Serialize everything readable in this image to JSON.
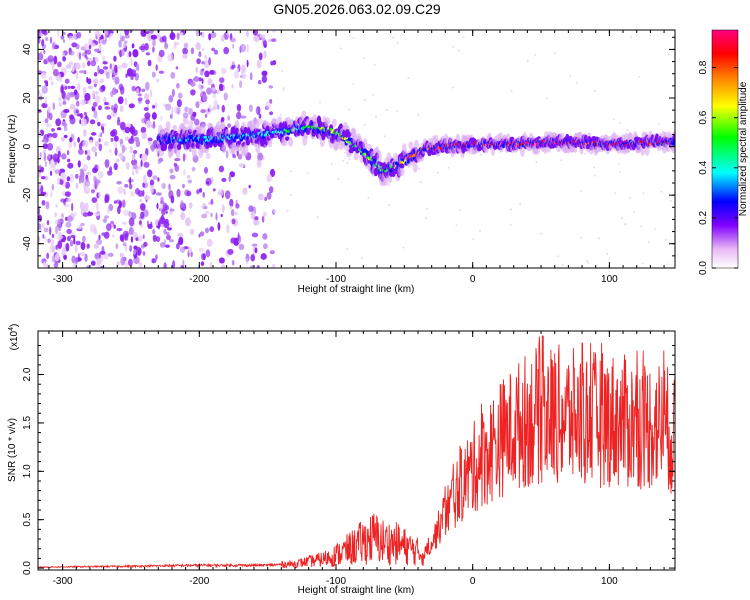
{
  "title": "GN05.2026.063.02.09.C29",
  "chart_data": [
    {
      "type": "heatmap",
      "name": "spectrogram",
      "xlabel": "Height of straight line (km)",
      "ylabel": "Frequency (Hz)",
      "xlim": [
        -318,
        148
      ],
      "ylim": [
        -50,
        48
      ],
      "xticks": [
        -300,
        -200,
        -100,
        0,
        100
      ],
      "xtick_labels": [
        "-300",
        "-200",
        "-100",
        "0",
        "100"
      ],
      "yticks": [
        -40,
        -20,
        0,
        20,
        40
      ],
      "ytick_labels": [
        "-40",
        "-20",
        "0",
        "20",
        "40"
      ],
      "colorbar": {
        "label": "Normalized spectral amplitude",
        "range": [
          0,
          0.95
        ],
        "ticks": [
          0.0,
          0.2,
          0.4,
          0.6,
          0.8
        ],
        "tick_labels": [
          "0.0",
          "0.2",
          "0.4",
          "0.6",
          "0.8"
        ],
        "colors": [
          "#ffffff",
          "#e0a0f0",
          "#8000ff",
          "#0000ff",
          "#00ffff",
          "#00ff00",
          "#ffff00",
          "#ff8000",
          "#ff0000",
          "#ff0080"
        ]
      },
      "ridge": {
        "x": [
          -230,
          -200,
          -170,
          -140,
          -120,
          -105,
          -95,
          -85,
          -75,
          -65,
          -55,
          -45,
          -35,
          -20,
          0,
          30,
          60,
          100,
          148
        ],
        "y": [
          3,
          3,
          4,
          6,
          8,
          7,
          4,
          0,
          -5,
          -10,
          -8,
          -4,
          -1,
          0,
          1,
          1,
          2,
          1,
          2
        ],
        "amplitude": [
          0.25,
          0.3,
          0.3,
          0.35,
          0.45,
          0.55,
          0.5,
          0.5,
          0.5,
          0.45,
          0.6,
          0.8,
          0.85,
          0.9,
          0.9,
          0.9,
          0.92,
          0.9,
          0.9
        ]
      },
      "noise_region": [
        -318,
        -145
      ]
    },
    {
      "type": "line",
      "name": "snr",
      "xlabel": "Height of straight line (km)",
      "ylabel": "SNR (10 * v/v)",
      "exponent_label": "(x10",
      "exponent_power": "4",
      "exponent_close": ")",
      "xlim": [
        -318,
        148
      ],
      "ylim": [
        -0.02,
        2.45
      ],
      "xticks": [
        -300,
        -200,
        -100,
        0,
        100
      ],
      "xtick_labels": [
        "-300",
        "-200",
        "-100",
        "0",
        "100"
      ],
      "yticks": [
        0.0,
        0.5,
        1.0,
        1.5,
        2.0
      ],
      "ytick_labels": [
        "0.0",
        "0.5",
        "1.0",
        "1.5",
        "2.0"
      ],
      "color": "#ee2222",
      "envelope": {
        "x": [
          -318,
          -250,
          -200,
          -150,
          -130,
          -110,
          -100,
          -90,
          -80,
          -72,
          -65,
          -55,
          -45,
          -35,
          -30,
          -25,
          -20,
          -10,
          0,
          10,
          20,
          30,
          40,
          50,
          60,
          80,
          100,
          120,
          140,
          148
        ],
        "y": [
          0.01,
          0.02,
          0.03,
          0.03,
          0.05,
          0.1,
          0.15,
          0.22,
          0.3,
          0.35,
          0.3,
          0.28,
          0.22,
          0.15,
          0.25,
          0.4,
          0.55,
          0.8,
          1.0,
          1.15,
          1.3,
          1.4,
          1.5,
          1.55,
          1.55,
          1.5,
          1.5,
          1.45,
          1.45,
          1.3
        ]
      }
    }
  ]
}
